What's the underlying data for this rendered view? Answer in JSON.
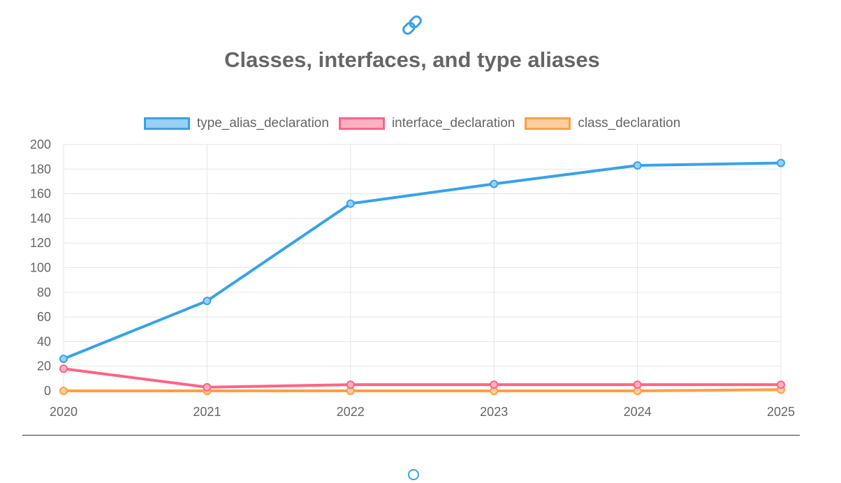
{
  "link_icon": "link-icon",
  "chart_data": {
    "type": "line",
    "title": "Classes, interfaces, and type aliases",
    "categories": [
      "2020",
      "2021",
      "2022",
      "2023",
      "2024",
      "2025"
    ],
    "series": [
      {
        "name": "type_alias_declaration",
        "values": [
          26,
          73,
          152,
          168,
          183,
          185
        ],
        "color": "#36a2eb",
        "fill": "#9ad0f5"
      },
      {
        "name": "interface_declaration",
        "values": [
          18,
          3,
          5,
          5,
          5,
          5
        ],
        "color": "#ff6384",
        "fill": "#ffb1c1"
      },
      {
        "name": "class_declaration",
        "values": [
          0,
          0,
          0,
          0,
          0,
          1
        ],
        "color": "#ff9f40",
        "fill": "#ffcf9f"
      }
    ],
    "ylim": [
      0,
      200
    ],
    "yticks": [
      "0",
      "20",
      "40",
      "60",
      "80",
      "100",
      "120",
      "140",
      "160",
      "180",
      "200"
    ],
    "grid": true,
    "legend_position": "top"
  }
}
